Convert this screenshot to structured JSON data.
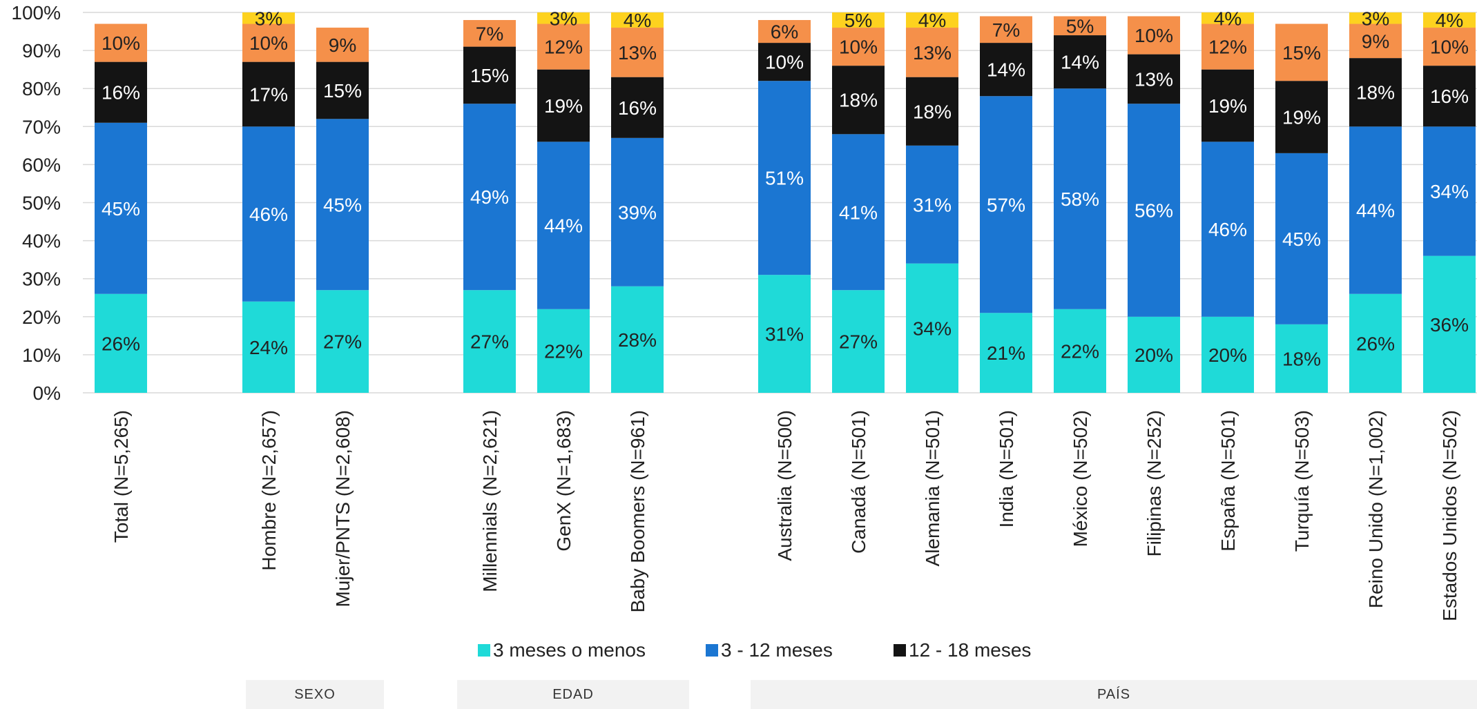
{
  "chart_data": {
    "type": "bar",
    "stacked": true,
    "percent": true,
    "ylim": [
      0,
      100
    ],
    "yticks": [
      "0%",
      "10%",
      "20%",
      "30%",
      "40%",
      "50%",
      "60%",
      "70%",
      "80%",
      "90%",
      "100%"
    ],
    "grid": true,
    "categories": [
      "Total (N=5,265)",
      "Hombre (N=2,657)",
      "Mujer/PNTS (N=2,608)",
      "Millennials (N=2,621)",
      "GenX (N=1,683)",
      "Baby Boomers (N=961)",
      "Australia (N=500)",
      "Canadá (N=501)",
      "Alemania (N=501)",
      "India (N=501)",
      "México (N=502)",
      "Filipinas (N=252)",
      "España (N=501)",
      "Turquía (N=503)",
      "Reino Unido (N=1,002)",
      "Estados Unidos (N=502)"
    ],
    "series": [
      {
        "name": "3 meses o menos",
        "color": "#1fdad8",
        "values": [
          26,
          24,
          27,
          27,
          22,
          28,
          31,
          27,
          34,
          21,
          22,
          20,
          20,
          18,
          26,
          36
        ],
        "labels": [
          "26%",
          "24%",
          "27%",
          "27%",
          "22%",
          "28%",
          "31%",
          "27%",
          "34%",
          "21%",
          "22%",
          "20%",
          "20%",
          "18%",
          "26%",
          "36%"
        ]
      },
      {
        "name": "3 - 12 meses",
        "color": "#1b76d2",
        "values": [
          45,
          46,
          45,
          49,
          44,
          39,
          51,
          41,
          31,
          57,
          58,
          56,
          46,
          45,
          44,
          34
        ],
        "labels": [
          "45%",
          "46%",
          "45%",
          "49%",
          "44%",
          "39%",
          "51%",
          "41%",
          "31%",
          "57%",
          "58%",
          "56%",
          "46%",
          "45%",
          "44%",
          "34%"
        ]
      },
      {
        "name": "12 - 18 meses",
        "color": "#141414",
        "values": [
          16,
          17,
          15,
          15,
          19,
          16,
          10,
          18,
          18,
          14,
          14,
          13,
          19,
          19,
          18,
          16
        ],
        "labels": [
          "16%",
          "17%",
          "15%",
          "15%",
          "19%",
          "16%",
          "10%",
          "18%",
          "18%",
          "14%",
          "14%",
          "13%",
          "19%",
          "19%",
          "18%",
          "16%"
        ]
      },
      {
        "color": "#f5904a",
        "values": [
          10,
          10,
          9,
          7,
          12,
          13,
          6,
          10,
          13,
          7,
          5,
          10,
          12,
          15,
          9,
          10
        ],
        "labels": [
          "10%",
          "10%",
          "9%",
          "7%",
          "12%",
          "13%",
          "6%",
          "10%",
          "13%",
          "7%",
          "5%",
          "10%",
          "12%",
          "15%",
          "9%",
          "10%"
        ]
      },
      {
        "color": "#fdd21f",
        "values": [
          0,
          3,
          0,
          0,
          3,
          4,
          0,
          5,
          4,
          0,
          0,
          0,
          4,
          0,
          3,
          4
        ],
        "labels": [
          "",
          "3%",
          "",
          "",
          "3%",
          "4%",
          "",
          "5%",
          "4%",
          "",
          "",
          "",
          "4%",
          "",
          "3%",
          "4%"
        ]
      }
    ],
    "legend": {
      "position": "bottom",
      "items": [
        "3 meses o menos",
        "3 - 12 meses",
        "12 - 18 meses"
      ]
    },
    "groups": [
      {
        "label": "SEXO",
        "categories": [
          1,
          2
        ]
      },
      {
        "label": "EDAD",
        "categories": [
          3,
          4,
          5
        ]
      },
      {
        "label": "PAÍS",
        "categories": [
          6,
          7,
          8,
          9,
          10,
          11,
          12,
          13,
          14,
          15
        ]
      }
    ]
  }
}
